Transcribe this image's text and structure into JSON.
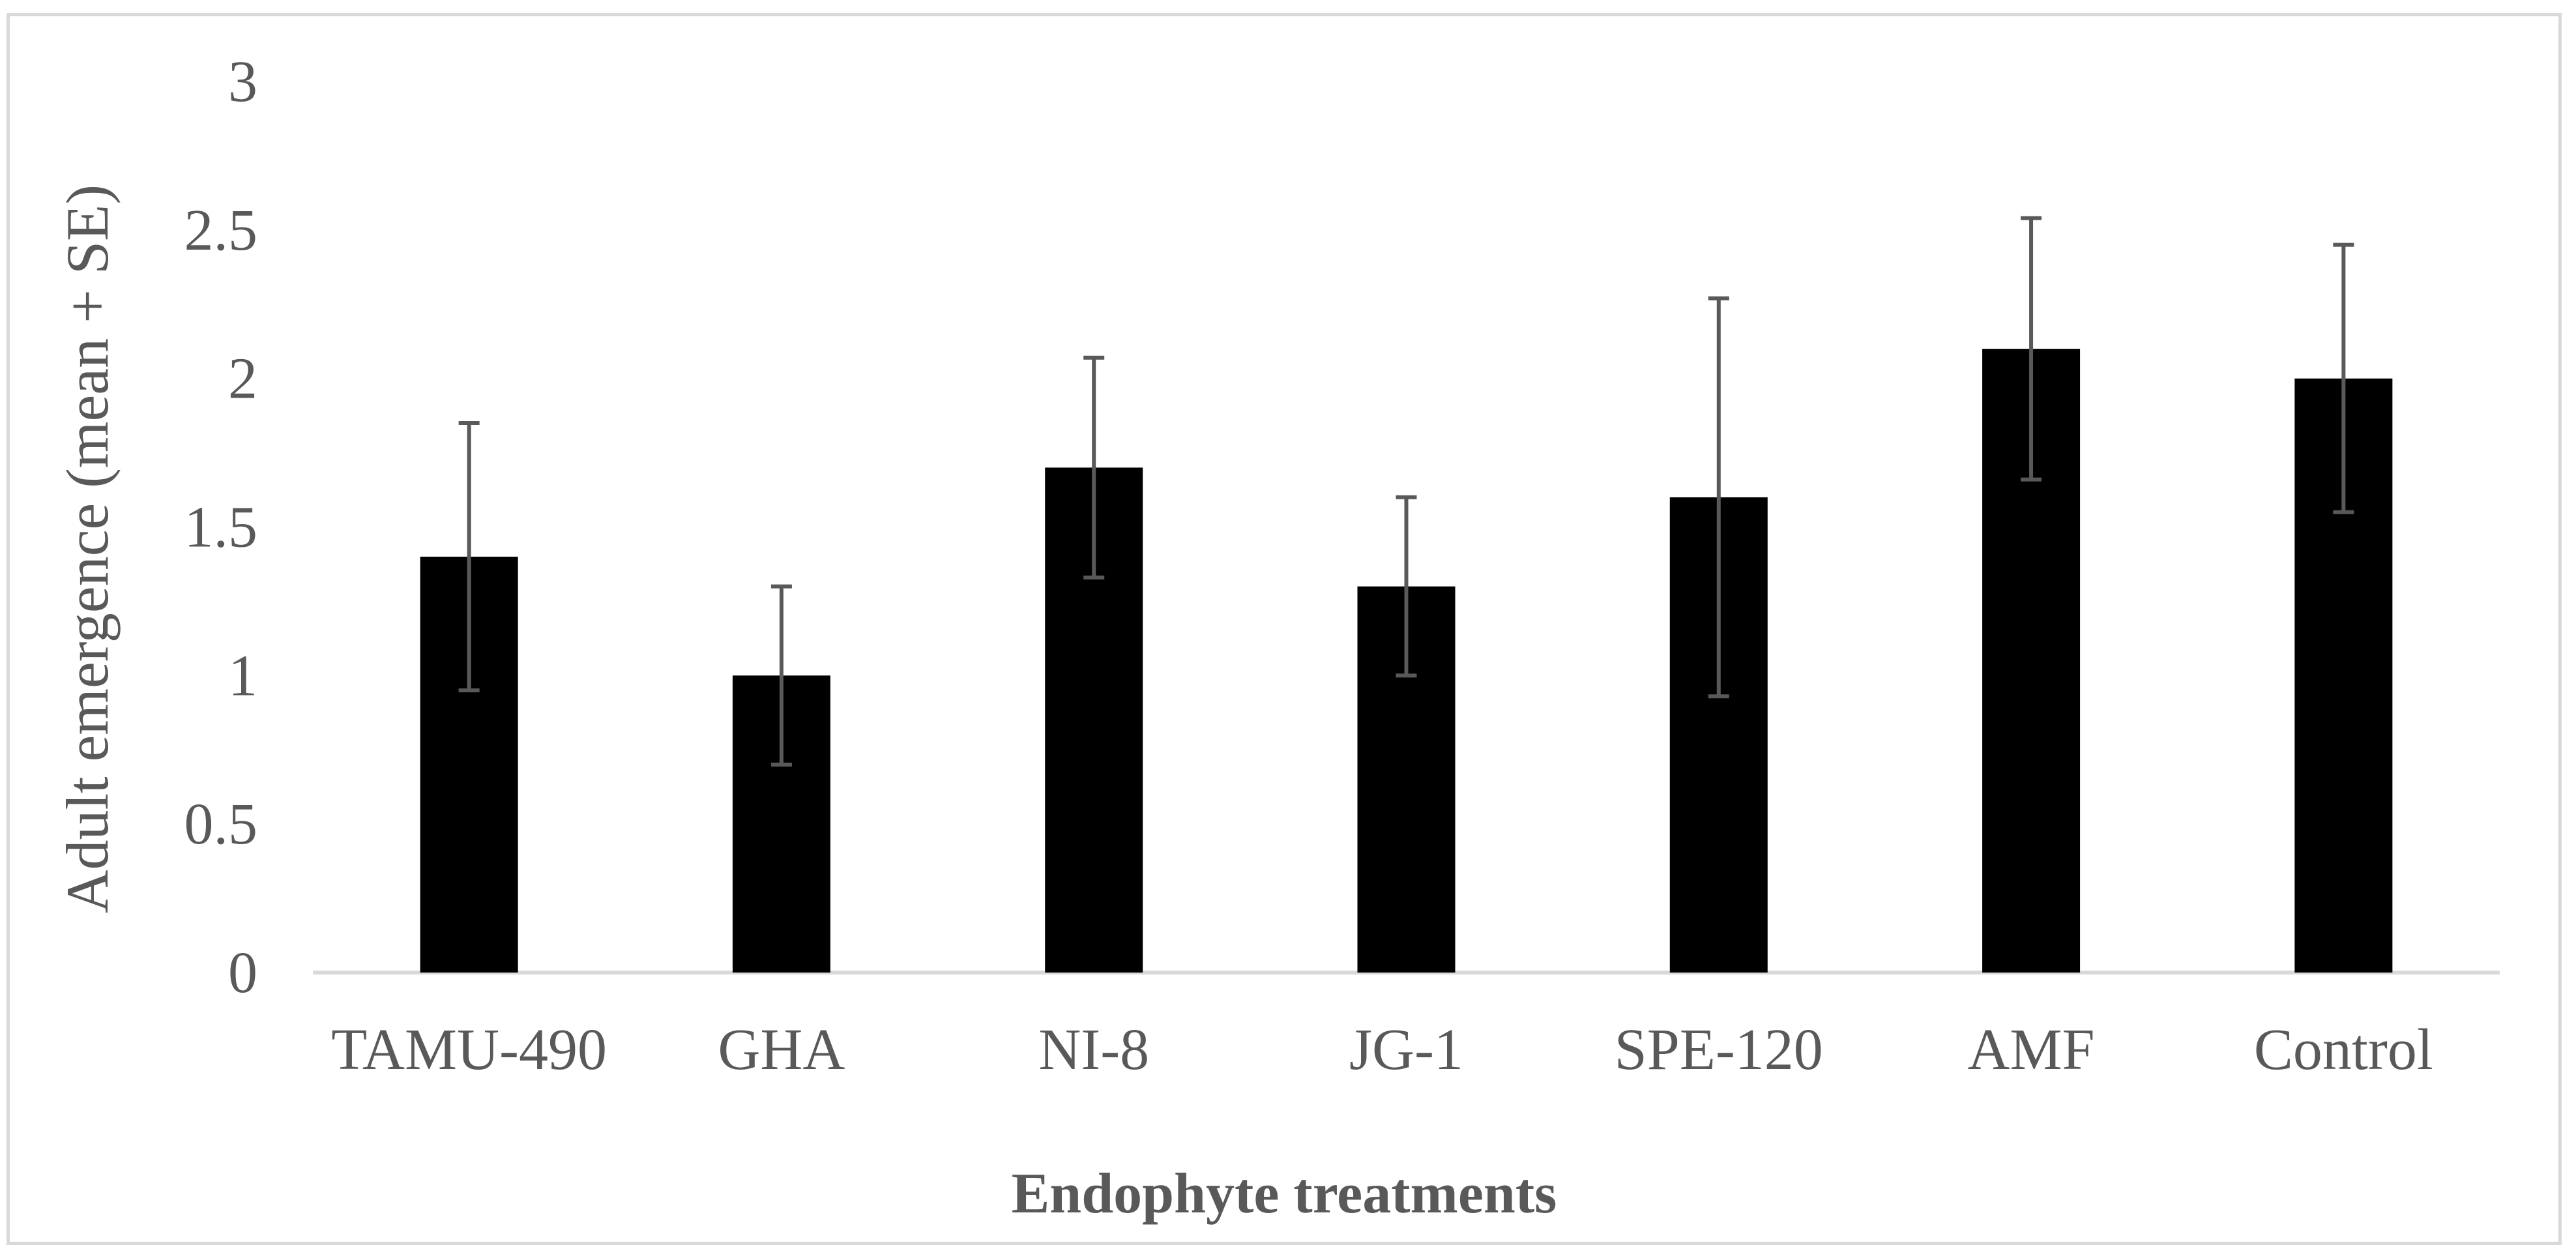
{
  "chart_data": {
    "type": "bar",
    "title": "",
    "xlabel": "Endophyte treatments",
    "ylabel": "Adult emergence (mean + SE)",
    "categories": [
      "TAMU-490",
      "GHA",
      "NI-8",
      "JG-1",
      "SPE-120",
      "AMF",
      "Control"
    ],
    "values": [
      1.4,
      1.0,
      1.7,
      1.3,
      1.6,
      2.1,
      2.0
    ],
    "errors": [
      0.45,
      0.3,
      0.37,
      0.3,
      0.67,
      0.44,
      0.45
    ],
    "ylim": [
      0,
      3
    ],
    "yticks": [
      0,
      0.5,
      1,
      1.5,
      2,
      2.5,
      3
    ],
    "ytick_labels": [
      "0",
      "0.5",
      "1",
      "1.5",
      "2",
      "2.5",
      "3"
    ],
    "grid": false,
    "legend": "none",
    "colors": {
      "bar": "#000000",
      "error": "#595959",
      "axis": "#d9d9d9",
      "text": "#595959"
    }
  }
}
